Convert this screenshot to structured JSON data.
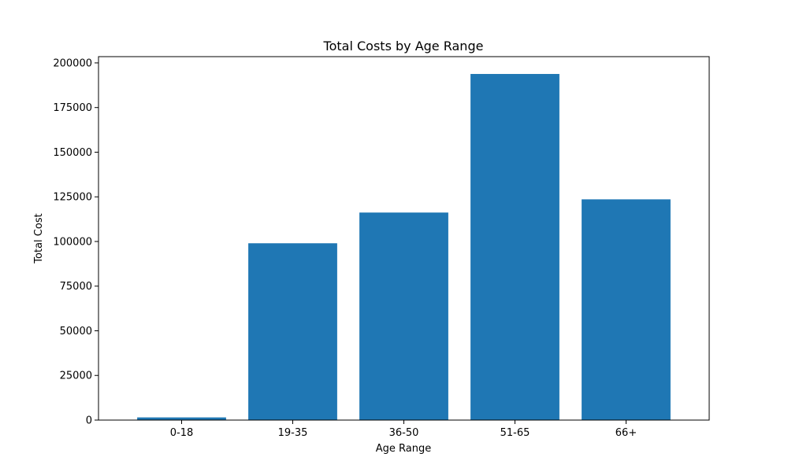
{
  "chart_data": {
    "type": "bar",
    "title": "Total Costs by Age Range",
    "xlabel": "Age Range",
    "ylabel": "Total Cost",
    "categories": [
      "0-18",
      "19-35",
      "36-50",
      "51-65",
      "66+"
    ],
    "values": [
      1500,
      99000,
      116200,
      193800,
      123600
    ],
    "ylim": [
      0,
      203500
    ],
    "yticks": [
      0,
      25000,
      50000,
      75000,
      100000,
      125000,
      150000,
      175000,
      200000
    ],
    "bar_color": "#1f77b4",
    "grid": false
  }
}
